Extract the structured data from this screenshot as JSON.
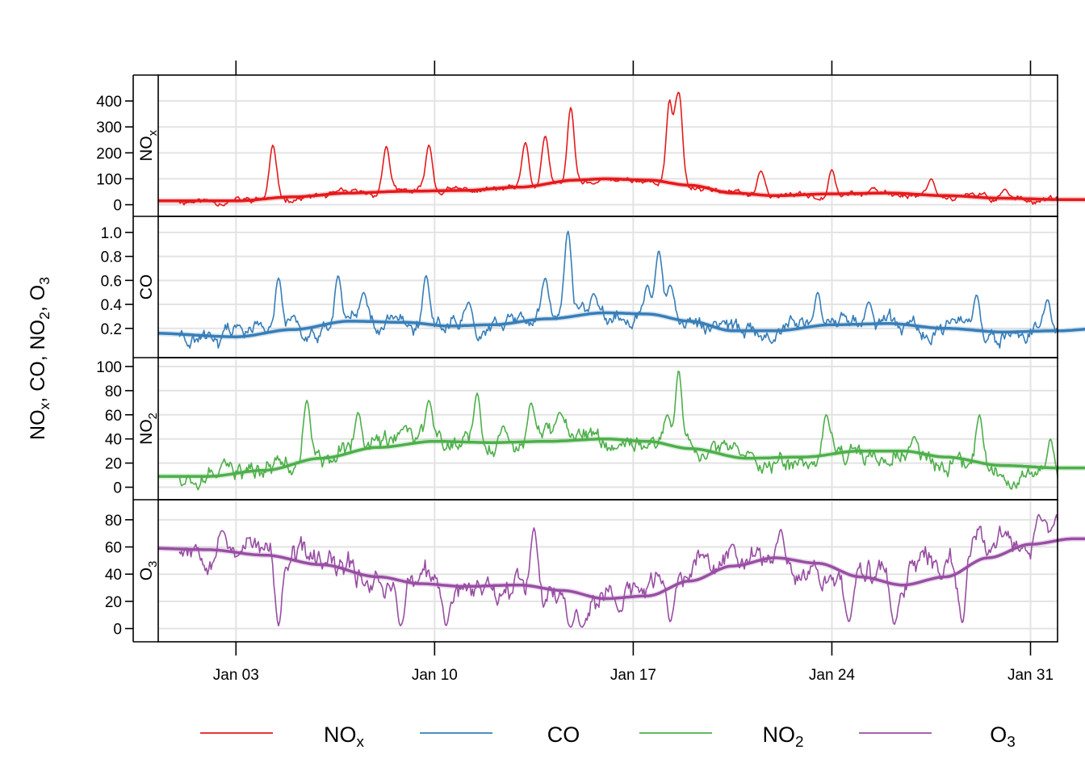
{
  "chart_data": {
    "type": "line",
    "title": "",
    "ylabel": "NOx, CO, NO2, O3",
    "ylabel_parts": {
      "p1": "NO",
      "p1s": "x",
      "sep1": ", CO, ",
      "p2": "NO",
      "p2s": "2",
      "sep2": ", ",
      "p3": "O",
      "p3s": "3"
    },
    "xlabel": "",
    "x_range_days": [
      0.0,
      32.5
    ],
    "x_ticks": [
      {
        "day": 2.0,
        "label": "Jan 03"
      },
      {
        "day": 9.0,
        "label": "Jan 10"
      },
      {
        "day": 16.0,
        "label": "Jan 17"
      },
      {
        "day": 23.0,
        "label": "Jan 24"
      },
      {
        "day": 30.0,
        "label": "Jan 31"
      }
    ],
    "panels": [
      {
        "key": "nox",
        "label": "NOx",
        "label_main": "NO",
        "label_sub": "x",
        "color": "#E41A1C",
        "ylim": [
          -20,
          475
        ],
        "yticks": [
          0,
          100,
          200,
          300,
          400
        ],
        "baseline": [
          [
            0,
            15
          ],
          [
            2,
            15
          ],
          [
            4,
            25
          ],
          [
            6,
            40
          ],
          [
            8,
            50
          ],
          [
            10,
            55
          ],
          [
            12,
            60
          ],
          [
            14,
            80
          ],
          [
            15.5,
            100
          ],
          [
            17,
            90
          ],
          [
            18.5,
            65
          ],
          [
            20,
            40
          ],
          [
            22,
            35
          ],
          [
            24,
            45
          ],
          [
            26,
            40
          ],
          [
            28,
            30
          ],
          [
            30,
            22
          ],
          [
            31,
            20
          ]
        ],
        "spikes": [
          [
            3.3,
            230
          ],
          [
            7.3,
            225
          ],
          [
            8.8,
            230
          ],
          [
            12.2,
            240
          ],
          [
            12.9,
            265
          ],
          [
            13.8,
            375
          ],
          [
            14.6,
            80
          ],
          [
            15.4,
            90
          ],
          [
            17.3,
            430
          ],
          [
            17.5,
            310
          ],
          [
            17.6,
            435
          ],
          [
            20.5,
            130
          ],
          [
            23.0,
            135
          ],
          [
            26.5,
            100
          ],
          [
            29.1,
            60
          ]
        ],
        "noise": 14,
        "seed": 11,
        "smooth": [
          [
            -1,
            15
          ],
          [
            2,
            15
          ],
          [
            4,
            30
          ],
          [
            6,
            45
          ],
          [
            8,
            52
          ],
          [
            10,
            55
          ],
          [
            12,
            68
          ],
          [
            14,
            95
          ],
          [
            15,
            100
          ],
          [
            16.5,
            95
          ],
          [
            18,
            75
          ],
          [
            19.5,
            45
          ],
          [
            21,
            35
          ],
          [
            23,
            42
          ],
          [
            25,
            45
          ],
          [
            27,
            35
          ],
          [
            29,
            25
          ],
          [
            31,
            20
          ],
          [
            32.5,
            20
          ]
        ]
      },
      {
        "key": "co",
        "label": "CO",
        "label_main": "CO",
        "label_sub": "",
        "color": "#377EB8",
        "ylim": [
          0.01,
          1.08
        ],
        "yticks": [
          0.2,
          0.4,
          0.6,
          0.8,
          1.0
        ],
        "baseline": [
          [
            0,
            0.16
          ],
          [
            2,
            0.13
          ],
          [
            4,
            0.2
          ],
          [
            6,
            0.26
          ],
          [
            8,
            0.25
          ],
          [
            10,
            0.22
          ],
          [
            12,
            0.25
          ],
          [
            14,
            0.32
          ],
          [
            15.5,
            0.33
          ],
          [
            17,
            0.3
          ],
          [
            19,
            0.2
          ],
          [
            21,
            0.18
          ],
          [
            23,
            0.23
          ],
          [
            25,
            0.24
          ],
          [
            27,
            0.19
          ],
          [
            29,
            0.17
          ],
          [
            31,
            0.19
          ]
        ],
        "spikes": [
          [
            3.5,
            0.62
          ],
          [
            5.6,
            0.64
          ],
          [
            6.5,
            0.5
          ],
          [
            8.7,
            0.64
          ],
          [
            10.2,
            0.42
          ],
          [
            12.9,
            0.62
          ],
          [
            13.7,
            1.01
          ],
          [
            14.6,
            0.49
          ],
          [
            16.5,
            0.56
          ],
          [
            16.9,
            0.85
          ],
          [
            17.3,
            0.56
          ],
          [
            22.5,
            0.5
          ],
          [
            24.3,
            0.42
          ],
          [
            28.1,
            0.48
          ],
          [
            30.6,
            0.44
          ]
        ],
        "noise": 0.08,
        "seed": 23,
        "smooth": [
          [
            -1,
            0.16
          ],
          [
            2,
            0.13
          ],
          [
            4,
            0.19
          ],
          [
            6,
            0.26
          ],
          [
            8,
            0.25
          ],
          [
            9.5,
            0.22
          ],
          [
            11,
            0.23
          ],
          [
            13,
            0.28
          ],
          [
            15,
            0.33
          ],
          [
            16.5,
            0.32
          ],
          [
            18,
            0.26
          ],
          [
            19.5,
            0.18
          ],
          [
            21,
            0.18
          ],
          [
            23,
            0.23
          ],
          [
            25,
            0.24
          ],
          [
            27,
            0.2
          ],
          [
            29,
            0.17
          ],
          [
            31,
            0.18
          ],
          [
            32.5,
            0.2
          ]
        ]
      },
      {
        "key": "no2",
        "label": "NO2",
        "label_main": "NO",
        "label_sub": "2",
        "color": "#4DAF4A",
        "ylim": [
          -5,
          102
        ],
        "yticks": [
          0,
          20,
          40,
          60,
          80,
          100
        ],
        "baseline": [
          [
            0,
            12
          ],
          [
            2,
            10
          ],
          [
            4,
            20
          ],
          [
            6,
            32
          ],
          [
            8,
            38
          ],
          [
            10,
            38
          ],
          [
            12,
            37
          ],
          [
            14,
            38
          ],
          [
            15.5,
            40
          ],
          [
            17,
            35
          ],
          [
            19,
            25
          ],
          [
            21,
            22
          ],
          [
            23,
            28
          ],
          [
            25,
            30
          ],
          [
            27,
            22
          ],
          [
            29,
            15
          ],
          [
            31,
            15
          ]
        ],
        "spikes": [
          [
            4.5,
            72
          ],
          [
            6.3,
            62
          ],
          [
            8.8,
            72
          ],
          [
            10.5,
            78
          ],
          [
            12.4,
            70
          ],
          [
            13.4,
            62
          ],
          [
            17.6,
            97
          ],
          [
            17.2,
            60
          ],
          [
            22.8,
            60
          ],
          [
            25.9,
            42
          ],
          [
            28.2,
            60
          ],
          [
            30.7,
            40
          ]
        ],
        "noise": 9,
        "seed": 37,
        "smooth": [
          [
            -1,
            9
          ],
          [
            1,
            9
          ],
          [
            3,
            14
          ],
          [
            5,
            24
          ],
          [
            7,
            33
          ],
          [
            9,
            38
          ],
          [
            11,
            37
          ],
          [
            13,
            38
          ],
          [
            15,
            40
          ],
          [
            16.5,
            38
          ],
          [
            18,
            32
          ],
          [
            20,
            24
          ],
          [
            22,
            25
          ],
          [
            24,
            30
          ],
          [
            25.5,
            30
          ],
          [
            27,
            25
          ],
          [
            29,
            18
          ],
          [
            31,
            16
          ],
          [
            32.5,
            16
          ]
        ]
      },
      {
        "key": "o3",
        "label": "O3",
        "label_main": "O",
        "label_sub": "3",
        "color": "#984EA3",
        "ylim": [
          -5,
          90
        ],
        "yticks": [
          0,
          20,
          40,
          60,
          80
        ],
        "baseline": [
          [
            0,
            62
          ],
          [
            2,
            62
          ],
          [
            4,
            52
          ],
          [
            6,
            40
          ],
          [
            8,
            34
          ],
          [
            10,
            30
          ],
          [
            12,
            35
          ],
          [
            14,
            18
          ],
          [
            15.5,
            22
          ],
          [
            17,
            35
          ],
          [
            19,
            48
          ],
          [
            21,
            55
          ],
          [
            23,
            38
          ],
          [
            25,
            40
          ],
          [
            27,
            48
          ],
          [
            29,
            62
          ],
          [
            31,
            62
          ]
        ],
        "spikes": [
          [
            1.5,
            72
          ],
          [
            3.5,
            2
          ],
          [
            7.8,
            2
          ],
          [
            9.4,
            2
          ],
          [
            12.5,
            74
          ],
          [
            13.8,
            1
          ],
          [
            14.2,
            1
          ],
          [
            17.3,
            5
          ],
          [
            19.5,
            62
          ],
          [
            21.2,
            73
          ],
          [
            23.6,
            5
          ],
          [
            25.2,
            3
          ],
          [
            27.6,
            4
          ],
          [
            30.3,
            85
          ],
          [
            30.5,
            80
          ]
        ],
        "noise": 11,
        "seed": 53,
        "smooth": [
          [
            -1,
            59
          ],
          [
            1,
            58
          ],
          [
            3,
            54
          ],
          [
            5,
            47
          ],
          [
            7,
            38
          ],
          [
            8.5,
            33
          ],
          [
            10,
            31
          ],
          [
            12,
            32
          ],
          [
            13.5,
            28
          ],
          [
            15,
            22
          ],
          [
            16.5,
            24
          ],
          [
            18,
            35
          ],
          [
            19.5,
            46
          ],
          [
            21,
            52
          ],
          [
            22.5,
            48
          ],
          [
            24,
            38
          ],
          [
            25.5,
            32
          ],
          [
            27,
            38
          ],
          [
            28.5,
            52
          ],
          [
            30,
            62
          ],
          [
            31.5,
            66
          ],
          [
            32.5,
            66
          ]
        ]
      }
    ],
    "legend": [
      {
        "label": "NOx",
        "main": "NO",
        "sub": "x",
        "color": "#E41A1C"
      },
      {
        "label": "CO",
        "main": "CO",
        "sub": "",
        "color": "#377EB8"
      },
      {
        "label": "NO2",
        "main": "NO",
        "sub": "2",
        "color": "#4DAF4A"
      },
      {
        "label": "O3",
        "main": "O",
        "sub": "3",
        "color": "#984EA3"
      }
    ],
    "legend_position": "bottom"
  }
}
